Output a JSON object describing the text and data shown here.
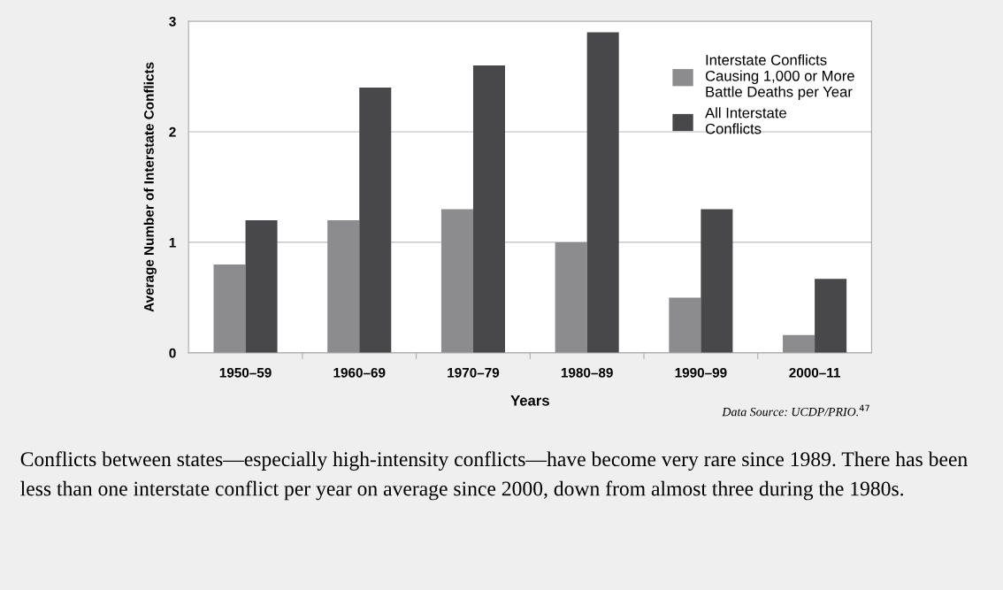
{
  "chart_data": {
    "type": "bar",
    "xlabel": "Years",
    "ylabel": "Average Number of Interstate Conflicts",
    "categories": [
      "1950–59",
      "1960–69",
      "1970–79",
      "1980–89",
      "1990–99",
      "2000–11"
    ],
    "series": [
      {
        "name": "Interstate Conflicts Causing 1,000 or More Battle Deaths per Year",
        "color": "#8c8c8e",
        "values": [
          0.8,
          1.2,
          1.3,
          1.0,
          0.5,
          0.16
        ]
      },
      {
        "name": "All Interstate Conflicts",
        "color": "#48484a",
        "values": [
          1.2,
          2.4,
          2.6,
          2.9,
          1.3,
          0.67
        ]
      }
    ],
    "ylim": [
      0,
      3
    ],
    "yticks": [
      0,
      1,
      2,
      3
    ],
    "grid": "y",
    "legend": "top right",
    "annotations": [
      "Data Source: UCDP/PRIO.$^{47}$",
      "Conflicts between states—especially high-intensity conflicts—have become very rare since 1989. There has been less than one interstate conflict per year on average since 2000, down from almost three during the 1980s."
    ]
  }
}
